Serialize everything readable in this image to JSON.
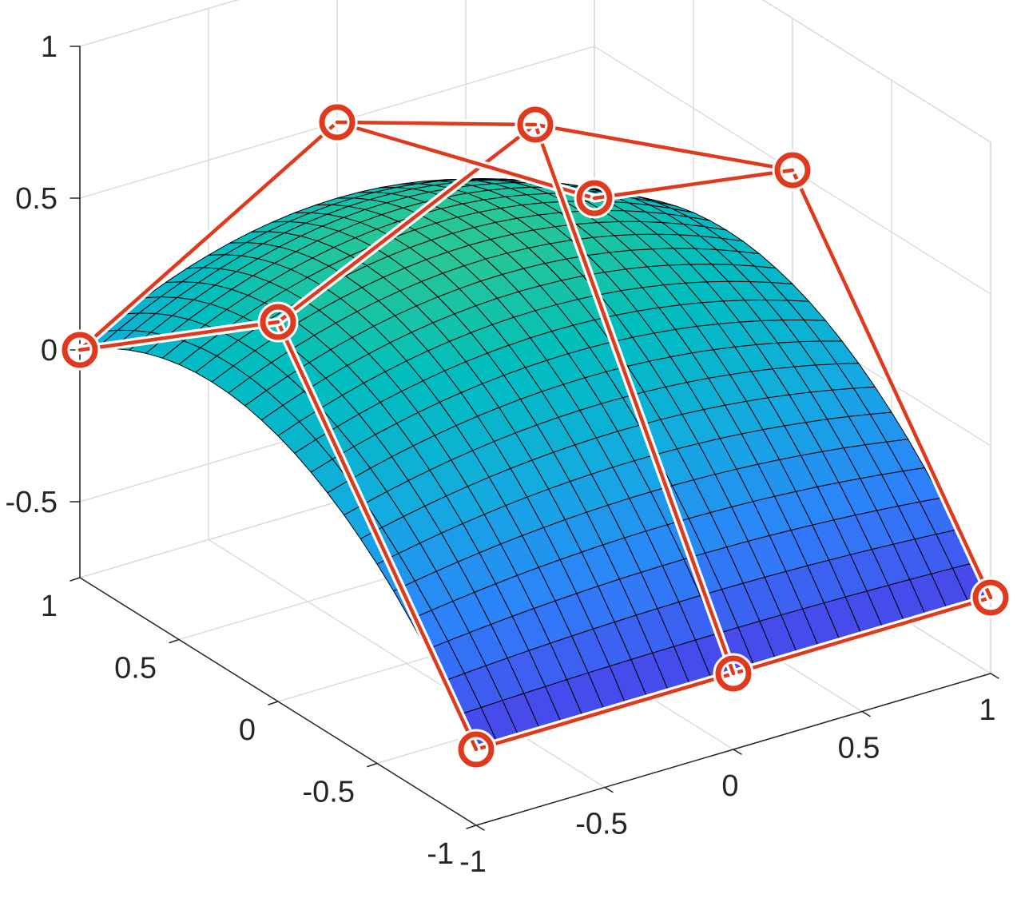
{
  "chart_data": {
    "type": "surface",
    "title": "",
    "xlabel": "",
    "ylabel": "",
    "zlabel": "",
    "xlim": [
      -1,
      1
    ],
    "ylim": [
      -1,
      1
    ],
    "zlim": [
      -0.75,
      1
    ],
    "grid": true,
    "x_ticks": [
      "-1",
      "-0.5",
      "0",
      "0.5",
      "1"
    ],
    "y_ticks": [
      "-1",
      "-0.5",
      "0",
      "0.5",
      "1"
    ],
    "z_ticks": [
      "-0.5",
      "0",
      "0.5",
      "1"
    ],
    "surface": {
      "description": "Bezier surface defined by a 3x3 grid of control points",
      "grid_resolution": 24,
      "colormap": "parula"
    },
    "control_points": [
      [
        [
          -1,
          -1,
          -0.5
        ],
        [
          0,
          -1,
          -0.5
        ],
        [
          1,
          -1,
          -0.5
        ]
      ],
      [
        [
          -1,
          0,
          0.5
        ],
        [
          0,
          0,
          0.9
        ],
        [
          1,
          0,
          0.5
        ]
      ],
      [
        [
          -1,
          1,
          0
        ],
        [
          0,
          1,
          0.5
        ],
        [
          1,
          1,
          0
        ]
      ]
    ],
    "colors": {
      "control_net": "#e03a1e",
      "mesh_edge": "#000000",
      "grid": "#dcdcdc",
      "axis": "#262626"
    }
  }
}
